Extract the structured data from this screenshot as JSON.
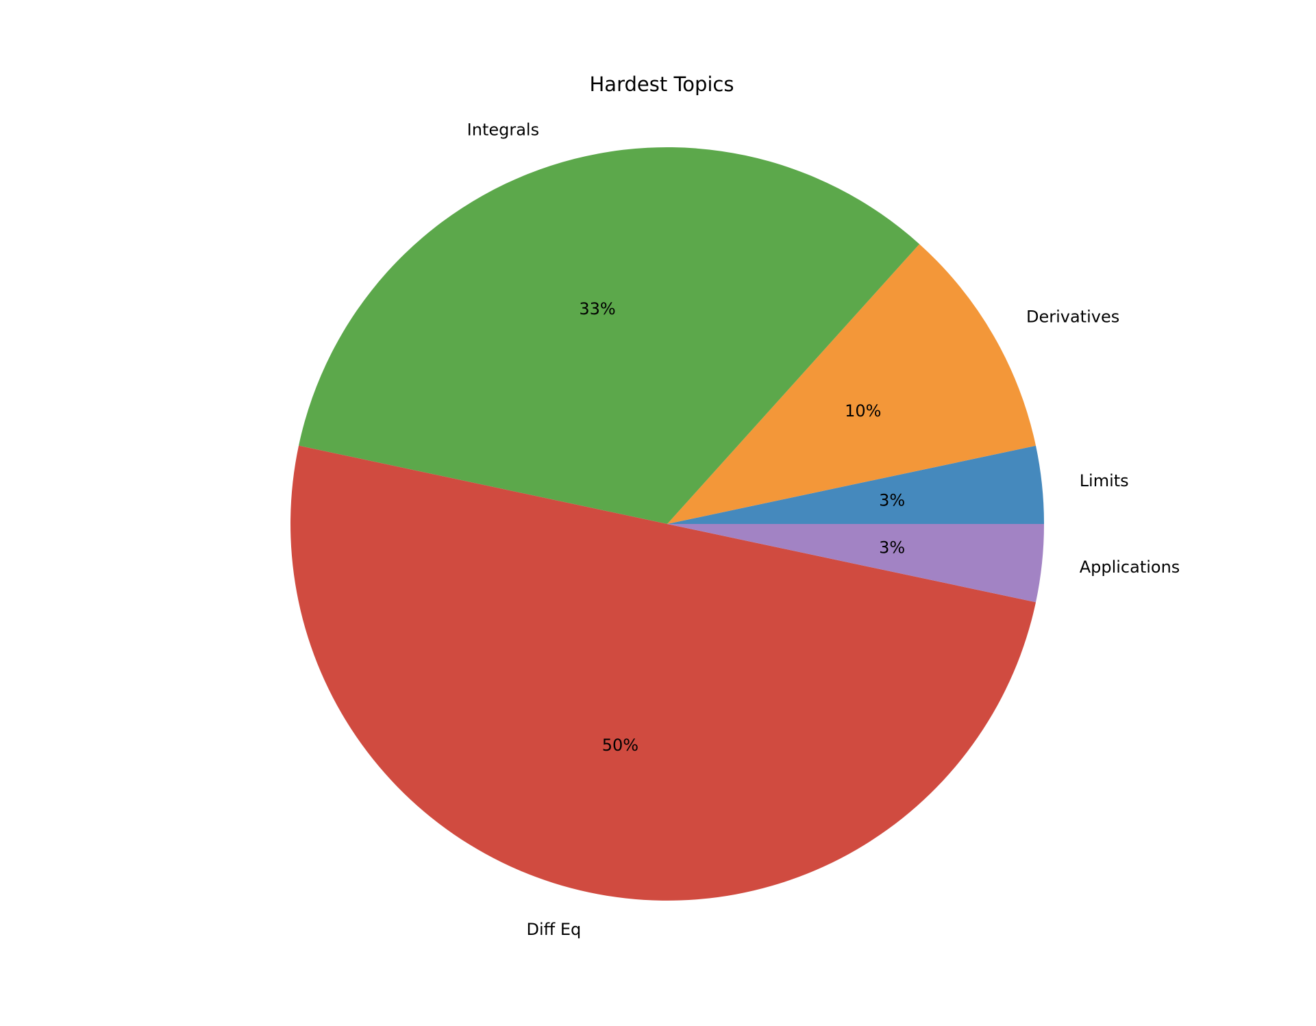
{
  "chart_data": {
    "type": "pie",
    "title": "Hardest Topics",
    "categories": [
      "Limits",
      "Derivatives",
      "Integrals",
      "Diff Eq",
      "Applications"
    ],
    "values": [
      3.33,
      10,
      33.33,
      50,
      3.33
    ],
    "value_labels": [
      "3%",
      "10%",
      "33%",
      "50%",
      "3%"
    ],
    "colors": [
      "#4589bd",
      "#f39739",
      "#5ca84b",
      "#d04b40",
      "#a283c4"
    ],
    "start_angle_deg": 0,
    "direction": "counterclockwise",
    "legend": "none"
  }
}
